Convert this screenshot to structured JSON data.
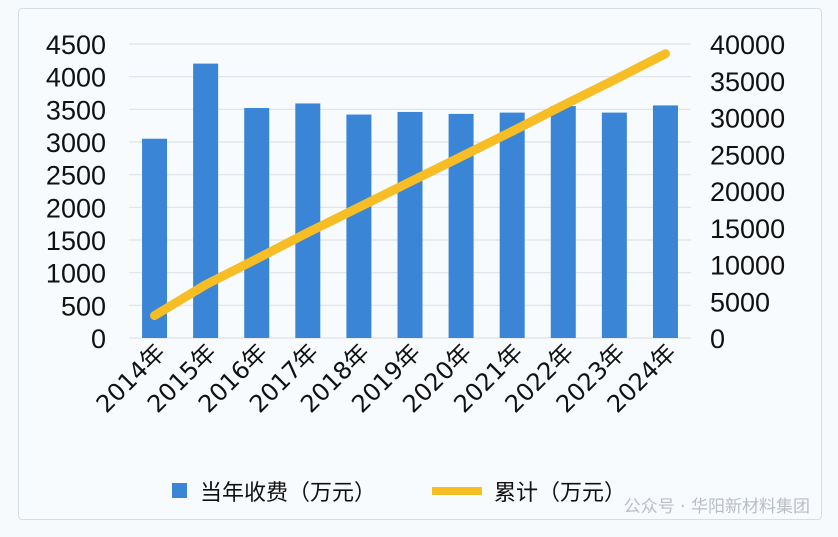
{
  "chart_data": {
    "type": "bar+line",
    "categories": [
      "2014年",
      "2015年",
      "2016年",
      "2017年",
      "2018年",
      "2019年",
      "2020年",
      "2021年",
      "2022年",
      "2023年",
      "2024年"
    ],
    "series": [
      {
        "name": "当年收费（万元）",
        "type": "bar",
        "axis": "left",
        "color": "#3a85d6",
        "values": [
          3050,
          4200,
          3520,
          3590,
          3420,
          3460,
          3430,
          3450,
          3550,
          3450,
          3560
        ]
      },
      {
        "name": "累计（万元）",
        "type": "line",
        "axis": "right",
        "color": "#f6bd25",
        "values": [
          3050,
          7250,
          10770,
          14360,
          17780,
          21240,
          24670,
          28120,
          31670,
          35120,
          38680
        ]
      }
    ],
    "left_axis": {
      "ylim": [
        0,
        4500
      ],
      "ticks": [
        "0",
        "500",
        "1000",
        "1500",
        "2000",
        "2500",
        "3000",
        "3500",
        "4000",
        "4500"
      ]
    },
    "right_axis": {
      "ylim": [
        0,
        40000
      ],
      "ticks": [
        "0",
        "5000",
        "10000",
        "15000",
        "20000",
        "25000",
        "30000",
        "35000",
        "40000"
      ]
    },
    "grid": true,
    "legend_position": "bottom"
  },
  "watermark": "公众号 · 华阳新材料集团"
}
